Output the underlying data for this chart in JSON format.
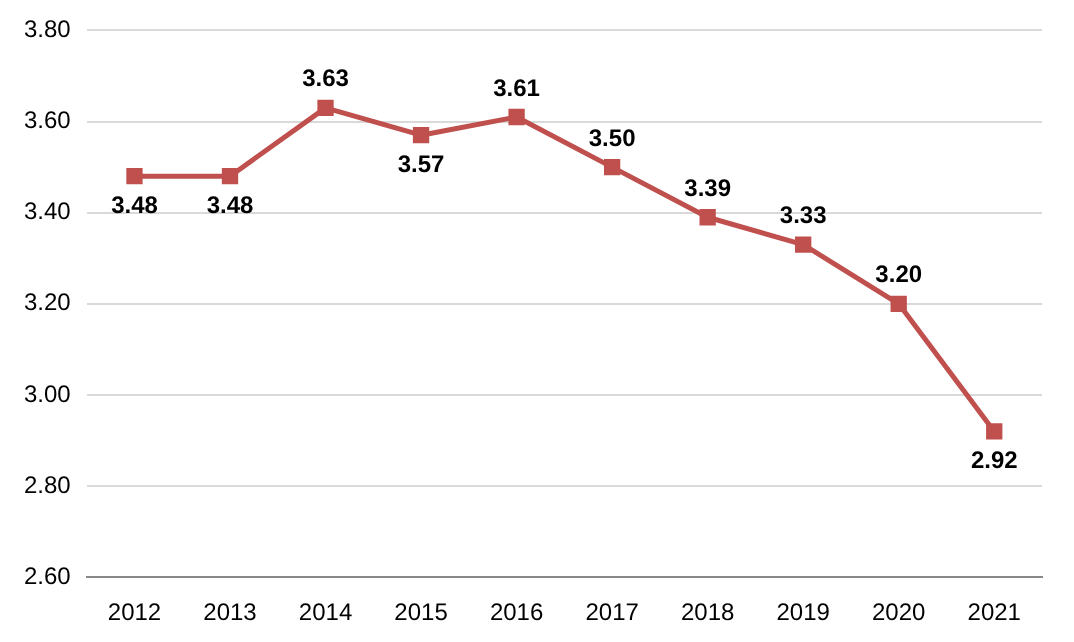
{
  "chart_data": {
    "type": "line",
    "categories": [
      "2012",
      "2013",
      "2014",
      "2015",
      "2016",
      "2017",
      "2018",
      "2019",
      "2020",
      "2021"
    ],
    "series": [
      {
        "color": "#c0504d",
        "values": [
          3.48,
          3.48,
          3.63,
          3.57,
          3.61,
          3.5,
          3.39,
          3.33,
          3.2,
          2.92
        ],
        "value_labels": [
          "3.48",
          "3.48",
          "3.63",
          "3.57",
          "3.61",
          "3.50",
          "3.39",
          "3.33",
          "3.20",
          "2.92"
        ]
      }
    ],
    "ylim": [
      2.6,
      3.8
    ],
    "yticks": [
      {
        "value": 2.6,
        "label": "2.60"
      },
      {
        "value": 2.8,
        "label": "2.80"
      },
      {
        "value": 3.0,
        "label": "3.00"
      },
      {
        "value": 3.2,
        "label": "3.20"
      },
      {
        "value": 3.4,
        "label": "3.40"
      },
      {
        "value": 3.6,
        "label": "3.60"
      },
      {
        "value": 3.8,
        "label": "3.80"
      }
    ],
    "grid": "y",
    "legend": false,
    "marker": "square",
    "line_style": "solid"
  }
}
